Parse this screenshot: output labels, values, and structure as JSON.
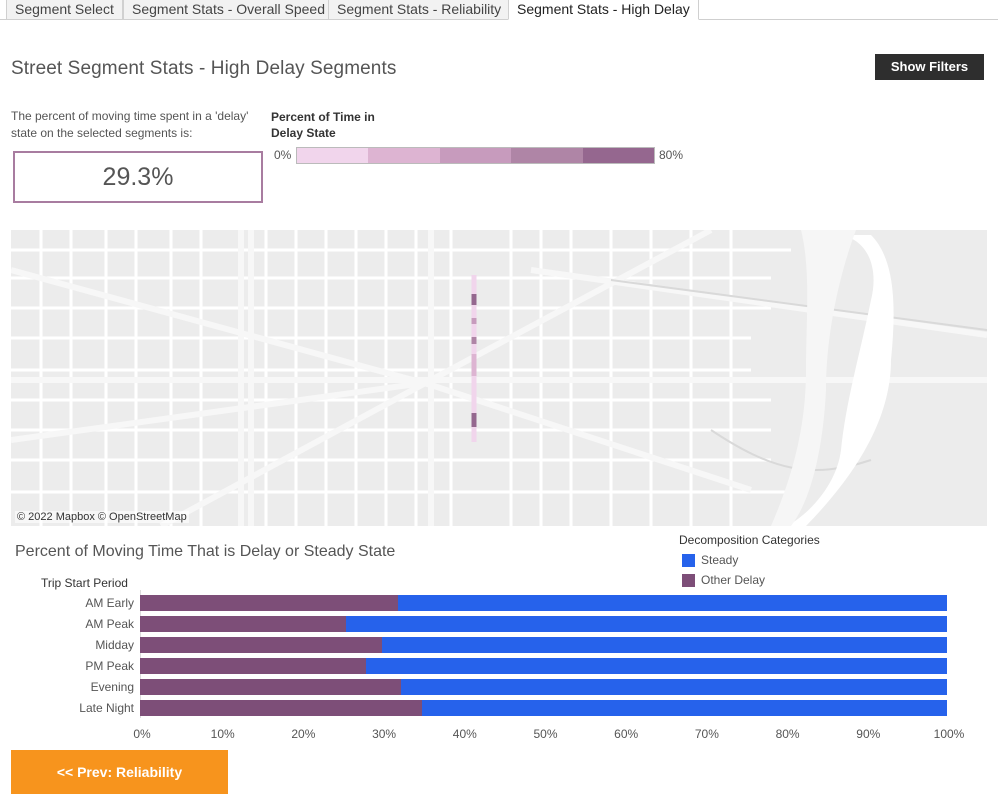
{
  "tabs": [
    {
      "label": "Segment Select"
    },
    {
      "label": "Segment Stats - Overall Speed"
    },
    {
      "label": "Segment Stats - Reliability"
    },
    {
      "label": "Segment Stats - High Delay"
    }
  ],
  "header": {
    "title": "Street Segment Stats - High Delay Segments",
    "filters_button": "Show Filters"
  },
  "kpi": {
    "description": "The percent of moving time spent in a 'delay' state on the selected segments is:",
    "value": "29.3%",
    "border_color": "#a87ca0"
  },
  "delay_legend": {
    "title": "Percent of Time in Delay State",
    "min_label": "0%",
    "max_label": "80%",
    "colors": [
      "#f1d5ec",
      "#ddb4d2",
      "#c79bbd",
      "#af85a6",
      "#95678f"
    ]
  },
  "map": {
    "credit": "© 2022 Mapbox © OpenStreetMap"
  },
  "chart_data": {
    "type": "bar",
    "orientation": "horizontal",
    "stacked": true,
    "title": "Percent of Moving Time That is Delay or Steady State",
    "ylabel": "Trip Start Period",
    "categories": [
      "AM Early",
      "AM Peak",
      "Midday",
      "PM Peak",
      "Evening",
      "Late Night"
    ],
    "series": [
      {
        "name": "Other Delay",
        "color": "#7d4e78",
        "values": [
          32,
          25.5,
          30,
          28,
          32.3,
          35
        ]
      },
      {
        "name": "Steady",
        "color": "#2662eb",
        "values": [
          68,
          74.5,
          70,
          72,
          67.7,
          65
        ]
      }
    ],
    "xlim": [
      0,
      100
    ],
    "xticks": [
      "0%",
      "10%",
      "20%",
      "30%",
      "40%",
      "50%",
      "60%",
      "70%",
      "80%",
      "90%",
      "100%"
    ],
    "legend": {
      "title": "Decomposition Categories",
      "entries": [
        "Steady",
        "Other Delay"
      ],
      "placement": "top-right"
    }
  },
  "footer": {
    "prev_button": "<< Prev: Reliability"
  }
}
